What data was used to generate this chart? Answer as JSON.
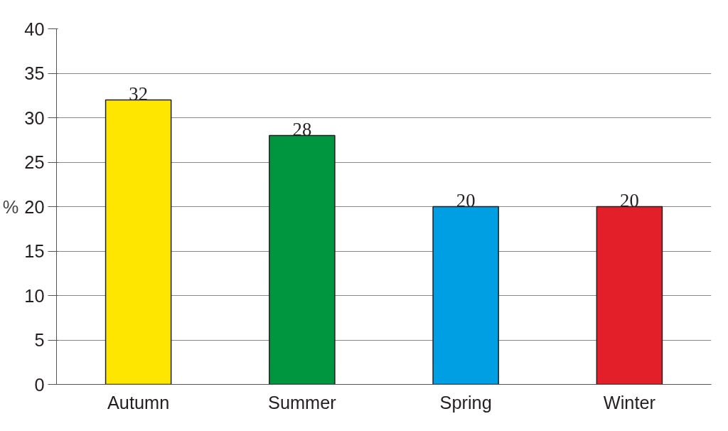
{
  "chart_data": {
    "type": "bar",
    "ylabel": "%",
    "categories": [
      "Autumn",
      "Summer",
      "Spring",
      "Winter"
    ],
    "values": [
      32,
      28,
      20,
      20
    ],
    "colors": [
      "#ffe600",
      "#009640",
      "#009fe3",
      "#e3202a"
    ],
    "ylim": [
      0,
      40
    ],
    "yticks": [
      0,
      5,
      10,
      15,
      20,
      25,
      30,
      35,
      40
    ],
    "grid": "y",
    "data_labels": true
  }
}
